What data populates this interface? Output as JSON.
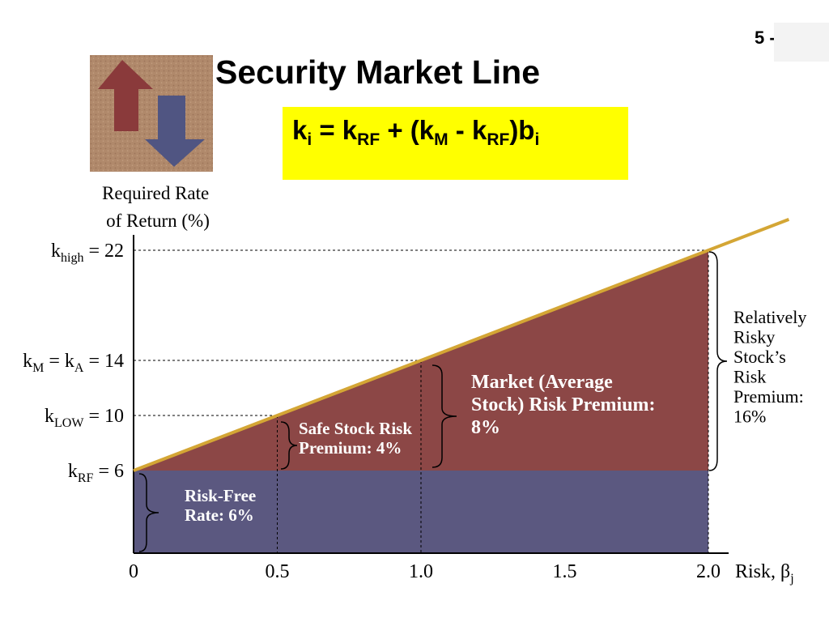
{
  "slide_number": "5 -",
  "title": "Security Market Line",
  "formula": {
    "k1": "k",
    "s1": "i",
    "eq": " = k",
    "s2": "RF",
    "p1": " + (k",
    "s3": "M",
    "minus": " - k",
    "s4": "RF",
    "p2": ")b",
    "s5": "i"
  },
  "colors": {
    "sml_line": "#d4a635",
    "risk_premium_area": "#8c4746",
    "risk_free_area": "#5b5880",
    "formula_bg": "#ffff00"
  },
  "icons": {
    "logo": "up-down-arrows-icon"
  },
  "chart_data": {
    "type": "line",
    "ylabel_lines": [
      "Required Rate",
      "of Return (%)"
    ],
    "xlabel": {
      "main": "Risk, ",
      "beta": "β",
      "sub": "j"
    },
    "x_ticks": [
      {
        "value": 0,
        "label": "0"
      },
      {
        "value": 0.5,
        "label": "0.5"
      },
      {
        "value": 1.0,
        "label": "1.0"
      },
      {
        "value": 1.5,
        "label": "1.5"
      },
      {
        "value": 2.0,
        "label": "2.0"
      }
    ],
    "y_ticks": [
      {
        "value": 22,
        "label": "k",
        "sub": "high",
        "suffix": " = 22"
      },
      {
        "value": 14,
        "label": "k",
        "sub": "M",
        "mid": " = k",
        "sub2": "A",
        "suffix": " = 14"
      },
      {
        "value": 10,
        "label": "k",
        "sub": "LOW",
        "suffix": " = 10"
      },
      {
        "value": 6,
        "label": "k",
        "sub": "RF",
        "suffix": " = 6"
      }
    ],
    "xlim": [
      0,
      2.0
    ],
    "ylim": [
      0,
      22
    ],
    "series": [
      {
        "x": [
          0,
          0.5,
          1.0,
          2.0
        ],
        "y": [
          6,
          10,
          14,
          22
        ]
      }
    ],
    "risk_free_rate": 6,
    "guides": [
      {
        "x": 0.5,
        "y": 10
      },
      {
        "x": 1.0,
        "y": 14
      },
      {
        "x": 2.0,
        "y": 22
      }
    ],
    "annotations": {
      "risk_free": [
        "Risk-Free",
        "Rate: 6%"
      ],
      "safe_stock": [
        "Safe Stock Risk",
        "Premium: 4%"
      ],
      "market": [
        "Market (Average",
        "Stock) Risk Premium:",
        "8%"
      ],
      "risky": [
        "Relatively",
        "Risky",
        "Stock’s",
        "Risk",
        "Premium:",
        "16%"
      ]
    }
  }
}
